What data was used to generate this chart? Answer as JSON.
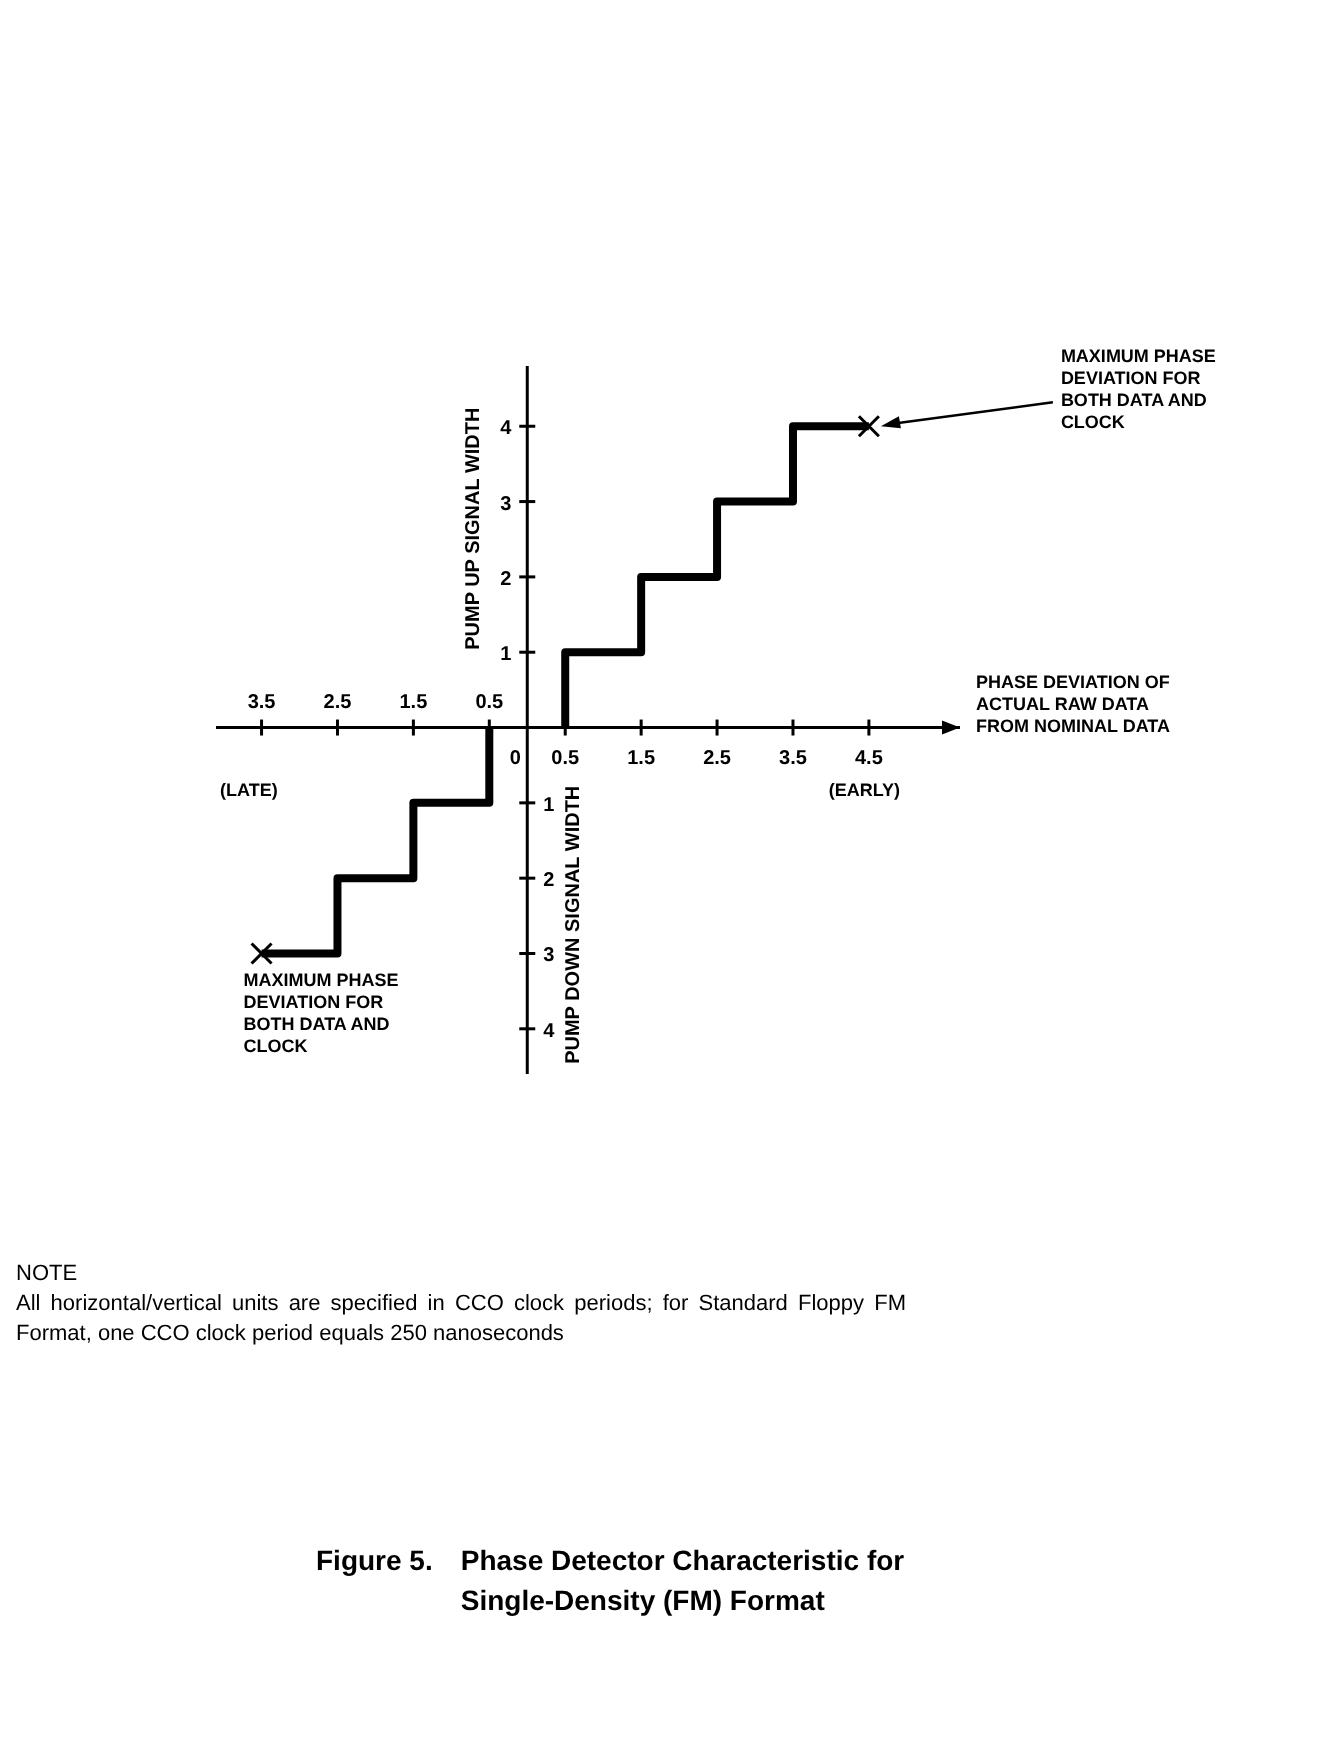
{
  "chart_data": {
    "type": "step",
    "title": "Figure 5. Phase Detector Characteristic for Single-Density (FM) Format",
    "xlabel": "PHASE DEVIATION OF ACTUAL RAW DATA FROM NOMINAL DATA",
    "ylabel": "PUMP UP SIGNAL WIDTH",
    "xlim": [
      -4.1,
      5.7
    ],
    "ylim": [
      -4.6,
      4.8
    ],
    "xticks": [
      0,
      0.5,
      1.5,
      2.5,
      3.5,
      4.5
    ],
    "x2lim": [
      -4.1,
      5.7
    ],
    "x2ticks": [
      {
        "value": -3.5,
        "label": "3.5"
      },
      {
        "value": -2.5,
        "label": "2.5"
      },
      {
        "value": -1.5,
        "label": "1.5"
      },
      {
        "value": -0.5,
        "label": "0.5"
      }
    ],
    "yticks": [
      1,
      2,
      3,
      4
    ],
    "y2lim": [
      -4.6,
      4.8
    ],
    "y2ticks": [
      {
        "value": -4,
        "label": "4"
      },
      {
        "value": -3,
        "label": "3"
      },
      {
        "value": -2,
        "label": "2"
      },
      {
        "value": -1,
        "label": "1"
      }
    ],
    "series": [
      {
        "color": "#000000",
        "x": [
          0.5,
          0.5,
          1.5,
          2.5,
          3.5,
          4.5
        ],
        "values": [
          0,
          1,
          2,
          3,
          4,
          4
        ]
      },
      {
        "color": "#000000",
        "x": [
          -0.5,
          -0.5,
          -1.5,
          -2.5,
          -3.5
        ],
        "values": [
          0,
          -1,
          -2,
          -3,
          -3
        ]
      },
      {
        "type": "scatter",
        "color": "#000000",
        "marker": "cross",
        "x": [
          4.5,
          -3.5
        ],
        "values": [
          4,
          -3
        ]
      }
    ],
    "annotations": [
      "MAXIMUM PHASE DEVIATION FOR BOTH DATA AND CLOCK",
      {
        "text": "MAXIMUM PHASE DEVIATION FOR BOTH DATA AND CLOCK",
        "x": -3.5,
        "y": -3
      },
      "(LATE)",
      "(EARLY)",
      "PUMP DOWN SIGNAL WIDTH",
      "NOTE",
      "All horizontal/vertical units are specified in CCO clock periods; for Standard Floppy FM Format, one CCO clock period equals 250 nanoseconds"
    ]
  }
}
